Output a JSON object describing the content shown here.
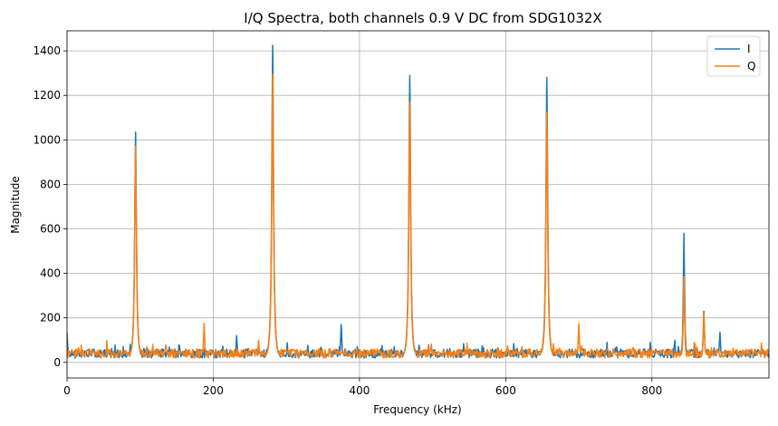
{
  "chart_data": {
    "type": "line",
    "title": "I/Q Spectra, both channels 0.9 V DC from SDG1032X",
    "xlabel": "Frequency (kHz)",
    "ylabel": "Magnitude",
    "xlim": [
      0,
      960
    ],
    "ylim": [
      -70,
      1490
    ],
    "xticks": [
      0,
      200,
      400,
      600,
      800
    ],
    "yticks": [
      0,
      200,
      400,
      600,
      800,
      1000,
      1200,
      1400
    ],
    "grid": true,
    "legend_position": "top-right",
    "noise_floor": [
      20,
      60
    ],
    "series": [
      {
        "name": "I",
        "color": "#1f77b4",
        "peaks": [
          {
            "x": 0,
            "y": 135
          },
          {
            "x": 93.75,
            "y": 1035
          },
          {
            "x": 232,
            "y": 120
          },
          {
            "x": 281.25,
            "y": 1425
          },
          {
            "x": 375,
            "y": 170
          },
          {
            "x": 468.75,
            "y": 1290
          },
          {
            "x": 656.25,
            "y": 1280
          },
          {
            "x": 843.75,
            "y": 580
          },
          {
            "x": 871,
            "y": 230
          },
          {
            "x": 893,
            "y": 135
          }
        ]
      },
      {
        "name": "Q",
        "color": "#ff7f0e",
        "peaks": [
          {
            "x": 93.75,
            "y": 970
          },
          {
            "x": 187.5,
            "y": 175
          },
          {
            "x": 262,
            "y": 100
          },
          {
            "x": 281.25,
            "y": 1295
          },
          {
            "x": 468.75,
            "y": 1170
          },
          {
            "x": 656.25,
            "y": 1125
          },
          {
            "x": 700,
            "y": 175
          },
          {
            "x": 843.75,
            "y": 385
          },
          {
            "x": 871,
            "y": 220
          }
        ]
      }
    ]
  }
}
